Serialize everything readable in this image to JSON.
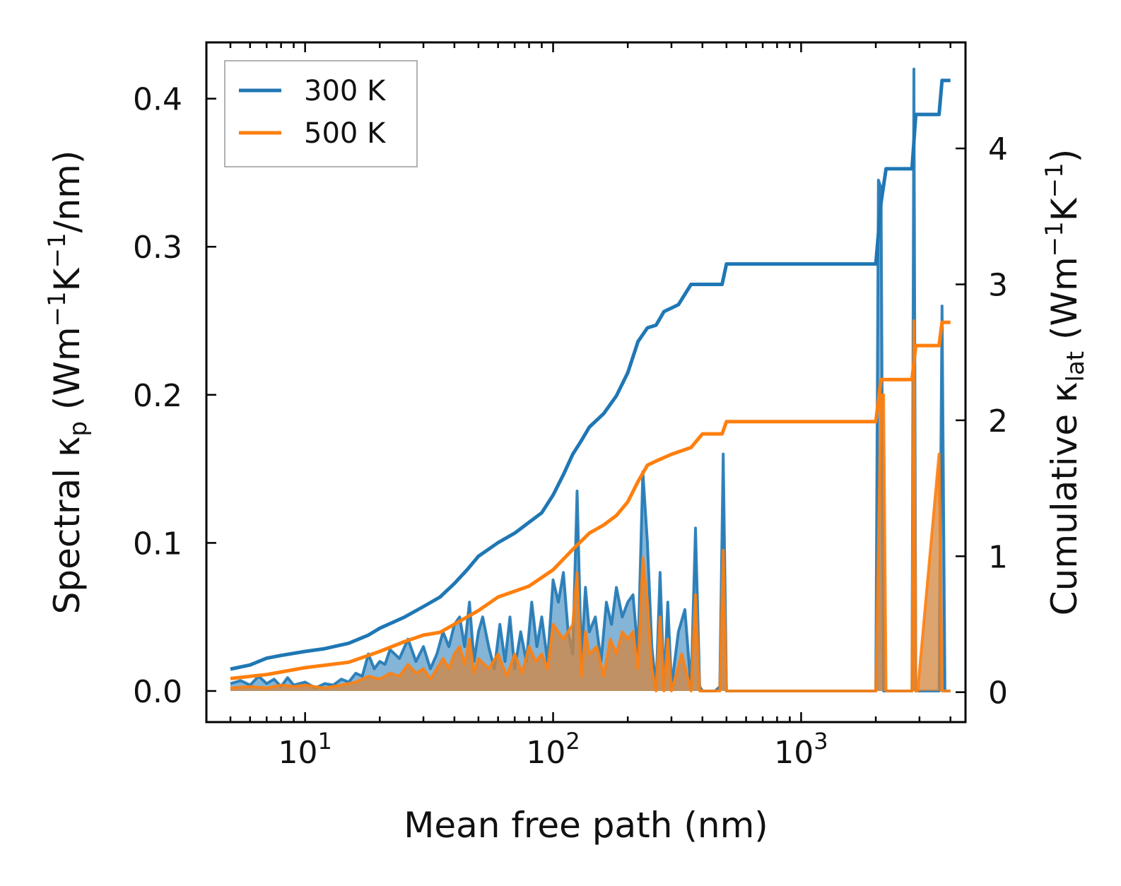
{
  "chart_data": {
    "type": "line",
    "x_scale": "log",
    "xlim": [
      4.0,
      4600
    ],
    "ylim_left": [
      -0.021,
      0.438
    ],
    "ylim_right": [
      -0.22,
      4.78
    ],
    "xlabel": "Mean free path (nm)",
    "ylabel_left": {
      "main": "Spectral ",
      "kappa": "κ",
      "kappa_sub": "p",
      "open": " (Wm",
      "exp1": "−1",
      "k": "K",
      "exp2": "−1",
      "tail": "/nm)"
    },
    "ylabel_right": {
      "main": "Cumulative ",
      "kappa": "κ",
      "kappa_sub": "lat",
      "open": " (Wm",
      "exp1": "−1",
      "k": "K",
      "exp2": "−1",
      "tail": ")"
    },
    "x_ticks": [
      {
        "value": 10,
        "base": "10",
        "exp": "1"
      },
      {
        "value": 100,
        "base": "10",
        "exp": "2"
      },
      {
        "value": 1000,
        "base": "10",
        "exp": "3"
      }
    ],
    "y_ticks_left": [
      {
        "value": 0.0,
        "label": "0.0"
      },
      {
        "value": 0.1,
        "label": "0.1"
      },
      {
        "value": 0.2,
        "label": "0.2"
      },
      {
        "value": 0.3,
        "label": "0.3"
      },
      {
        "value": 0.4,
        "label": "0.4"
      }
    ],
    "y_ticks_right": [
      {
        "value": 0,
        "label": "0"
      },
      {
        "value": 1,
        "label": "1"
      },
      {
        "value": 2,
        "label": "2"
      },
      {
        "value": 3,
        "label": "3"
      },
      {
        "value": 4,
        "label": "4"
      }
    ],
    "legend": {
      "position": "top-left",
      "entries": [
        "300 K",
        "500 K"
      ]
    },
    "colors": {
      "300K": "#1f77b4",
      "500K": "#ff7f0e",
      "fill_300K": "#1f77b4",
      "fill_500K": "#d3863d"
    },
    "series": [
      {
        "name": "300 K",
        "axis": "right",
        "kind": "cumulative",
        "x": [
          5,
          6,
          7,
          8,
          10,
          12,
          15,
          18,
          20,
          25,
          30,
          35,
          40,
          45,
          50,
          60,
          70,
          80,
          90,
          100,
          110,
          120,
          130,
          140,
          160,
          180,
          200,
          220,
          240,
          260,
          280,
          320,
          360,
          400,
          480,
          500,
          2000,
          2100,
          2200,
          2800,
          2900,
          3600,
          3700,
          4000
        ],
        "y": [
          0.17,
          0.2,
          0.25,
          0.27,
          0.3,
          0.32,
          0.36,
          0.42,
          0.47,
          0.55,
          0.63,
          0.7,
          0.8,
          0.9,
          1.0,
          1.1,
          1.17,
          1.25,
          1.32,
          1.45,
          1.6,
          1.75,
          1.85,
          1.95,
          2.05,
          2.18,
          2.35,
          2.58,
          2.68,
          2.7,
          2.8,
          2.85,
          3.0,
          3.0,
          3.0,
          3.15,
          3.15,
          3.6,
          3.85,
          3.85,
          4.25,
          4.25,
          4.5,
          4.5
        ]
      },
      {
        "name": "500 K",
        "axis": "right",
        "kind": "cumulative",
        "x": [
          5,
          7,
          10,
          15,
          20,
          25,
          30,
          35,
          40,
          50,
          60,
          80,
          100,
          120,
          140,
          160,
          180,
          200,
          220,
          240,
          260,
          300,
          360,
          400,
          480,
          500,
          2000,
          2100,
          2200,
          2800,
          2900,
          3600,
          3700,
          4000
        ],
        "y": [
          0.1,
          0.13,
          0.18,
          0.22,
          0.3,
          0.37,
          0.42,
          0.44,
          0.5,
          0.6,
          0.7,
          0.78,
          0.9,
          1.05,
          1.17,
          1.23,
          1.3,
          1.4,
          1.55,
          1.67,
          1.7,
          1.75,
          1.8,
          1.9,
          1.9,
          1.99,
          1.99,
          2.3,
          2.3,
          2.3,
          2.55,
          2.55,
          2.72,
          2.72
        ]
      },
      {
        "name": "300 K spectral",
        "axis": "left",
        "kind": "spectral",
        "x": [
          5,
          5.5,
          6,
          6.5,
          7,
          7.5,
          8,
          8.5,
          9,
          10,
          11,
          12,
          13,
          14,
          15,
          16,
          17,
          18,
          19,
          20,
          21,
          22,
          24,
          26,
          28,
          30,
          32,
          34,
          36,
          38,
          40,
          42,
          44,
          46,
          48,
          50,
          52,
          55,
          58,
          61,
          64,
          67,
          70,
          74,
          78,
          82,
          86,
          90,
          95,
          100,
          105,
          110,
          115,
          120,
          125,
          130,
          135,
          140,
          148,
          156,
          164,
          172,
          180,
          190,
          200,
          210,
          220,
          230,
          240,
          250,
          260,
          270,
          280,
          290,
          300,
          320,
          340,
          360,
          375,
          390,
          400,
          450,
          470,
          485,
          500,
          2000,
          2050,
          2100,
          2150,
          2200,
          2250,
          2800,
          2850,
          2900,
          2950,
          3600,
          3700,
          3800,
          4000
        ],
        "y": [
          0.005,
          0.007,
          0.004,
          0.01,
          0.005,
          0.008,
          0.003,
          0.009,
          0.004,
          0.006,
          0.002,
          0.005,
          0.004,
          0.008,
          0.006,
          0.012,
          0.01,
          0.025,
          0.015,
          0.02,
          0.018,
          0.028,
          0.022,
          0.035,
          0.02,
          0.03,
          0.015,
          0.025,
          0.04,
          0.03,
          0.045,
          0.05,
          0.03,
          0.06,
          0.02,
          0.04,
          0.05,
          0.03,
          0.015,
          0.045,
          0.02,
          0.05,
          0.015,
          0.04,
          0.02,
          0.06,
          0.03,
          0.05,
          0.02,
          0.075,
          0.06,
          0.08,
          0.04,
          0.025,
          0.135,
          0.02,
          0.07,
          0.04,
          0.05,
          0.02,
          0.06,
          0.045,
          0.07,
          0.05,
          0.06,
          0.065,
          0.025,
          0.148,
          0.1,
          0.03,
          0.002,
          0.08,
          0.002,
          0.06,
          0.003,
          0.04,
          0.055,
          0.002,
          0.11,
          0.003,
          0.0,
          0.0,
          0.003,
          0.16,
          0.0,
          0.0,
          0.345,
          0.34,
          0.0,
          0.0,
          0.0,
          0.0,
          0.42,
          0.0,
          0.0,
          0.0,
          0.26,
          0.0,
          0.0
        ]
      },
      {
        "name": "500 K spectral",
        "axis": "left",
        "kind": "spectral",
        "x": [
          5,
          6,
          7,
          8,
          9,
          10,
          12,
          14,
          16,
          18,
          20,
          22,
          24,
          26,
          28,
          30,
          32,
          34,
          36,
          38,
          40,
          42,
          44,
          46,
          48,
          50,
          55,
          60,
          65,
          70,
          75,
          80,
          85,
          90,
          95,
          100,
          110,
          120,
          125,
          130,
          135,
          140,
          150,
          160,
          170,
          180,
          190,
          200,
          210,
          220,
          230,
          240,
          250,
          260,
          270,
          280,
          290,
          300,
          330,
          360,
          375,
          390,
          400,
          450,
          470,
          485,
          500,
          2000,
          2100,
          2150,
          2200,
          2250,
          2800,
          2850,
          2900,
          2950,
          3600,
          3700,
          3800,
          4000
        ],
        "y": [
          0.002,
          0.003,
          0.002,
          0.004,
          0.003,
          0.004,
          0.002,
          0.004,
          0.006,
          0.01,
          0.008,
          0.012,
          0.01,
          0.018,
          0.012,
          0.015,
          0.008,
          0.015,
          0.022,
          0.015,
          0.025,
          0.03,
          0.018,
          0.035,
          0.012,
          0.022,
          0.015,
          0.025,
          0.01,
          0.025,
          0.012,
          0.03,
          0.02,
          0.025,
          0.015,
          0.045,
          0.035,
          0.045,
          0.08,
          0.01,
          0.04,
          0.025,
          0.03,
          0.01,
          0.035,
          0.025,
          0.04,
          0.035,
          0.04,
          0.015,
          0.09,
          0.06,
          0.015,
          0.0,
          0.05,
          0.0,
          0.035,
          0.0,
          0.025,
          0.0,
          0.065,
          0.0,
          0.0,
          0.0,
          0.0,
          0.095,
          0.0,
          0.0,
          0.2,
          0.2,
          0.0,
          0.0,
          0.0,
          0.25,
          0.0,
          0.0,
          0.16,
          0.0,
          0.0,
          0.0
        ]
      }
    ]
  }
}
